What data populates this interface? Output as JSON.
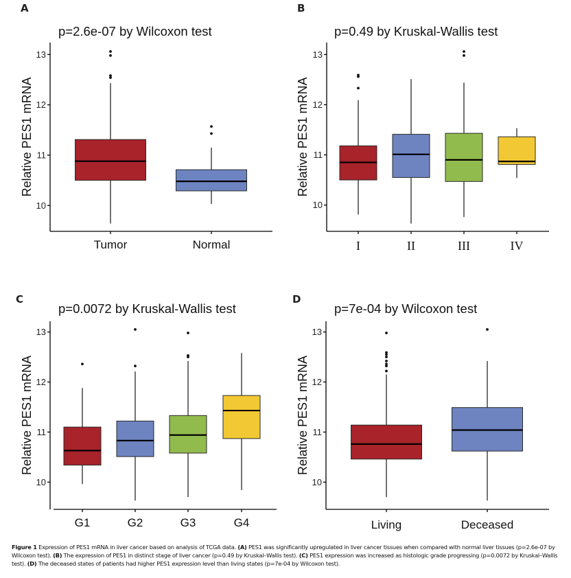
{
  "chart_data": [
    {
      "panel": "A",
      "type": "box",
      "title": "p=2.6e-07 by Wilcoxon test",
      "xlabel": "",
      "ylabel": "Relative PES1 mRNA",
      "yticks": [
        10,
        11,
        12,
        13
      ],
      "ylim": [
        9.5,
        13.25
      ],
      "tick_font": "sans",
      "groups": [
        {
          "name": "Tumor",
          "color": "#A8232A",
          "whisker_low": 9.64,
          "q1": 10.5,
          "median": 10.88,
          "q3": 11.31,
          "whisker_high": 12.43,
          "outliers": [
            13.06,
            12.98,
            12.58,
            12.54
          ]
        },
        {
          "name": "Normal",
          "color": "#6E84C0",
          "whisker_low": 10.03,
          "q1": 10.29,
          "median": 10.48,
          "q3": 10.71,
          "whisker_high": 11.15,
          "outliers": [
            11.57,
            11.43
          ]
        }
      ]
    },
    {
      "panel": "B",
      "type": "box",
      "title": "p=0.49 by Kruskal-Wallis test",
      "xlabel": "",
      "ylabel": "Relative PES1 mRNA",
      "yticks": [
        10,
        11,
        12,
        13
      ],
      "ylim": [
        9.5,
        13.25
      ],
      "tick_font": "serif",
      "groups": [
        {
          "name": "I",
          "color": "#A8232A",
          "whisker_low": 9.81,
          "q1": 10.5,
          "median": 10.85,
          "q3": 11.18,
          "whisker_high": 12.09,
          "outliers": [
            12.59,
            12.56,
            12.33
          ]
        },
        {
          "name": "II",
          "color": "#6E84C0",
          "whisker_low": 9.63,
          "q1": 10.55,
          "median": 11.01,
          "q3": 11.41,
          "whisker_high": 12.51,
          "outliers": []
        },
        {
          "name": "III",
          "color": "#92BB4E",
          "whisker_low": 9.76,
          "q1": 10.47,
          "median": 10.9,
          "q3": 11.43,
          "whisker_high": 12.44,
          "outliers": [
            13.06,
            12.98
          ]
        },
        {
          "name": "IV",
          "color": "#F2C934",
          "whisker_low": 10.54,
          "q1": 10.81,
          "median": 10.87,
          "q3": 11.36,
          "whisker_high": 11.53,
          "outliers": []
        }
      ]
    },
    {
      "panel": "C",
      "type": "box",
      "title": "p=0.0072 by Kruskal-Wallis test",
      "xlabel": "",
      "ylabel": "Relative PES1 mRNA",
      "yticks": [
        10,
        11,
        12,
        13
      ],
      "ylim": [
        9.5,
        13.25
      ],
      "tick_font": "sans",
      "groups": [
        {
          "name": "G1",
          "color": "#A8232A",
          "whisker_low": 9.96,
          "q1": 10.34,
          "median": 10.63,
          "q3": 11.1,
          "whisker_high": 11.88,
          "outliers": [
            12.36
          ]
        },
        {
          "name": "G2",
          "color": "#6E84C0",
          "whisker_low": 9.63,
          "q1": 10.51,
          "median": 10.83,
          "q3": 11.22,
          "whisker_high": 12.21,
          "outliers": [
            13.05,
            12.32
          ]
        },
        {
          "name": "G3",
          "color": "#92BB4E",
          "whisker_low": 9.7,
          "q1": 10.58,
          "median": 10.94,
          "q3": 11.33,
          "whisker_high": 12.42,
          "outliers": [
            12.98,
            12.53,
            12.5
          ]
        },
        {
          "name": "G4",
          "color": "#F2C934",
          "whisker_low": 9.84,
          "q1": 10.87,
          "median": 11.43,
          "q3": 11.73,
          "whisker_high": 12.58,
          "outliers": []
        }
      ]
    },
    {
      "panel": "D",
      "type": "box",
      "title": "p=7e-04 by Wilcoxon test",
      "xlabel": "",
      "ylabel": "Relative PES1 mRNA",
      "yticks": [
        10,
        11,
        12,
        13
      ],
      "ylim": [
        9.5,
        13.25
      ],
      "tick_font": "sans",
      "groups": [
        {
          "name": "Living",
          "color": "#A8232A",
          "whisker_low": 9.7,
          "q1": 10.46,
          "median": 10.76,
          "q3": 11.14,
          "whisker_high": 12.15,
          "outliers": [
            12.98,
            12.59,
            12.55,
            12.5,
            12.42,
            12.36,
            12.32,
            12.22
          ]
        },
        {
          "name": "Deceased",
          "color": "#6E84C0",
          "whisker_low": 9.63,
          "q1": 10.62,
          "median": 11.04,
          "q3": 11.49,
          "whisker_high": 12.42,
          "outliers": [
            13.05
          ]
        }
      ]
    }
  ],
  "caption": {
    "figure_label": "Figure 1",
    "intro": "Expression of PES1 mRNA in liver cancer based on analysis of TCGA data.",
    "parts": [
      {
        "label": "(A)",
        "text": "PES1 was significantly upregulated in liver cancer tissues when compared with normal liver tissues (p=2.6e-07 by Wilcoxon test)."
      },
      {
        "label": "(B)",
        "text": "The expression of PES1 in distinct stage of liver cancer (p=0.49 by Kruskal–Wallis test)."
      },
      {
        "label": "(C)",
        "text": "PES1 expression was increased as histologic grade progressing (p=0.0072 by Kruskal–Wallis test)."
      },
      {
        "label": "(D)",
        "text": "The deceased states of patients had higher PES1 expression level than living states (p=7e-04 by Wilcoxon test)."
      }
    ]
  }
}
